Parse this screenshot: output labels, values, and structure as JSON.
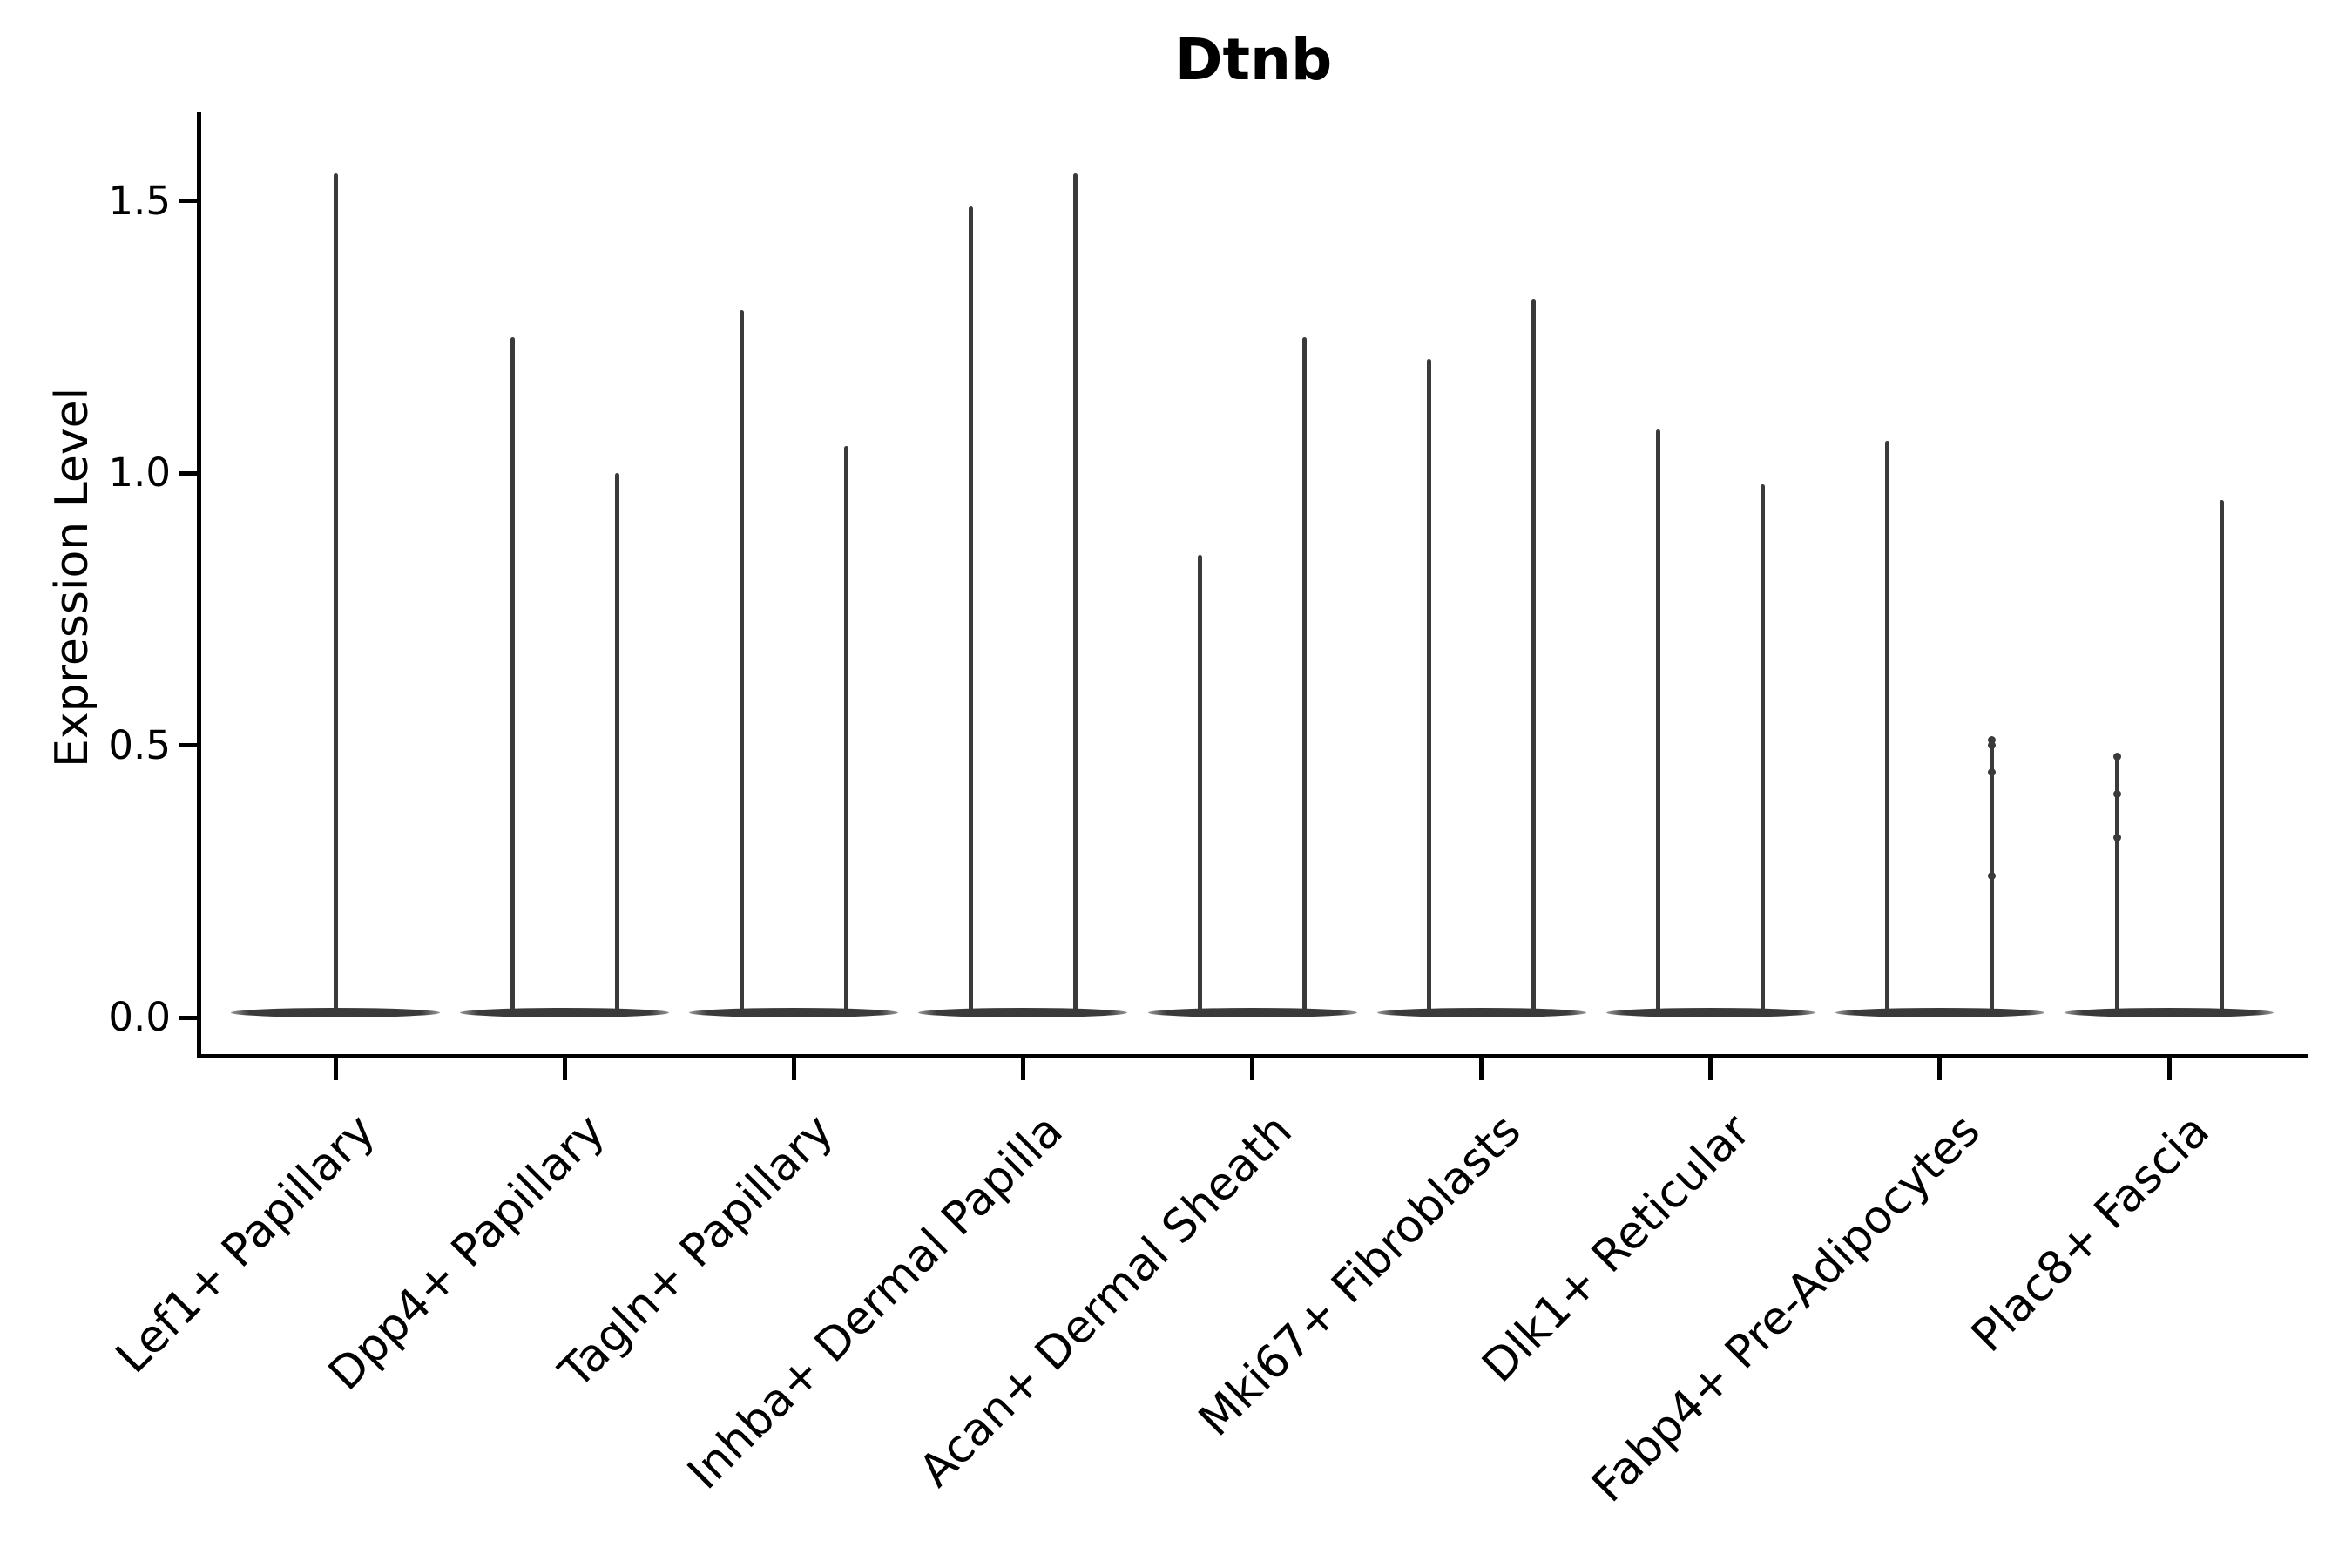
{
  "title": "Dtnb",
  "ylabel": "Expression Level",
  "colors": {
    "violin": "#3a3a3a",
    "axis": "#000000",
    "background": "#ffffff"
  },
  "chart_data": {
    "type": "violin",
    "title": "Dtnb",
    "xlabel": "",
    "ylabel": "Expression Level",
    "ylim": [
      0,
      1.66
    ],
    "grid": false,
    "legend": "none",
    "yticks": [
      {
        "value": 0.0,
        "label": "0.0"
      },
      {
        "value": 0.5,
        "label": "0.5"
      },
      {
        "value": 1.0,
        "label": "1.0"
      },
      {
        "value": 1.5,
        "label": "1.5"
      }
    ],
    "categories": [
      "Lef1+ Papillary",
      "Dpp4+ Papillary",
      "Tagln+ Papillary",
      "Inhba+ Dermal Papilla",
      "Acan+ Dermal Sheath",
      "Mki67+ Fibroblasts",
      "Dlk1+ Reticular",
      "Fabp4+ Pre-Adipocytes",
      "Plac8+ Fascia"
    ],
    "description": "Each category shows a violin collapsed to a wide flat base at expression 0 with thin vertical spikes up to the maximum expressing cells.",
    "series": [
      {
        "category": "Lef1+ Papillary",
        "violins": [
          {
            "position": "center",
            "max": 1.55,
            "points": []
          }
        ]
      },
      {
        "category": "Dpp4+ Papillary",
        "violins": [
          {
            "position": "left",
            "max": 1.25,
            "points": []
          },
          {
            "position": "right",
            "max": 1.0,
            "points": []
          }
        ]
      },
      {
        "category": "Tagln+ Papillary",
        "violins": [
          {
            "position": "left",
            "max": 1.3,
            "points": []
          },
          {
            "position": "right",
            "max": 1.05,
            "points": []
          }
        ]
      },
      {
        "category": "Inhba+ Dermal Papilla",
        "violins": [
          {
            "position": "left",
            "max": 1.49,
            "points": []
          },
          {
            "position": "right",
            "max": 1.55,
            "points": []
          }
        ]
      },
      {
        "category": "Acan+ Dermal Sheath",
        "violins": [
          {
            "position": "left",
            "max": 0.85,
            "points": []
          },
          {
            "position": "right",
            "max": 1.25,
            "points": []
          }
        ]
      },
      {
        "category": "Mki67+ Fibroblasts",
        "violins": [
          {
            "position": "left",
            "max": 1.21,
            "points": []
          },
          {
            "position": "right",
            "max": 1.32,
            "points": []
          }
        ]
      },
      {
        "category": "Dlk1+ Reticular",
        "violins": [
          {
            "position": "left",
            "max": 1.08,
            "points": []
          },
          {
            "position": "right",
            "max": 0.98,
            "points": []
          }
        ]
      },
      {
        "category": "Fabp4+ Pre-Adipocytes",
        "violins": [
          {
            "position": "left",
            "max": 1.06,
            "points": []
          },
          {
            "position": "right",
            "max": 0.51,
            "points": [
              0.51,
              0.5,
              0.45,
              0.26
            ]
          }
        ]
      },
      {
        "category": "Plac8+ Fascia",
        "violins": [
          {
            "position": "left",
            "max": 0.48,
            "points": [
              0.48,
              0.41,
              0.33
            ]
          },
          {
            "position": "right",
            "max": 0.95,
            "points": []
          }
        ]
      }
    ]
  }
}
